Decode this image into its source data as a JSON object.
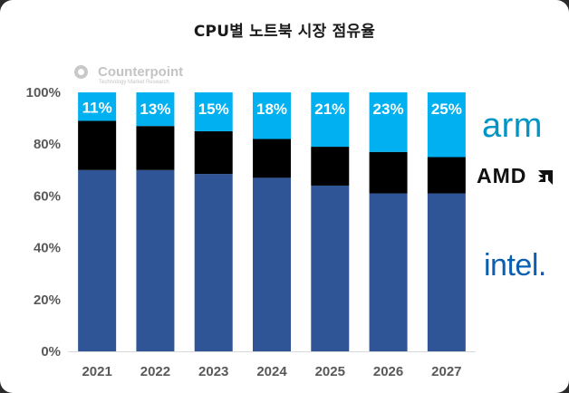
{
  "title": "CPU별 노트북 시장 점유율",
  "watermark": {
    "name": "Counterpoint",
    "tagline": "Technology Market Research"
  },
  "logos": {
    "arm": "arm",
    "amd": "AMD",
    "intel": "intel."
  },
  "colors": {
    "intel": "#2f5597",
    "amd": "#000000",
    "arm": "#00b0f0",
    "axis_text": "#595959",
    "bar_label": "#ffffff"
  },
  "chart_data": {
    "type": "bar",
    "stacked": true,
    "title": "CPU별 노트북 시장 점유율",
    "categories": [
      "2021",
      "2022",
      "2023",
      "2024",
      "2025",
      "2026",
      "2027"
    ],
    "series": [
      {
        "name": "intel.",
        "color_key": "intel",
        "values": [
          70,
          70,
          68.5,
          67,
          64,
          61,
          61
        ]
      },
      {
        "name": "AMD",
        "color_key": "amd",
        "values": [
          19,
          17,
          16.5,
          15,
          15,
          16,
          14
        ]
      },
      {
        "name": "arm",
        "color_key": "arm",
        "values": [
          11,
          13,
          15,
          18,
          21,
          23,
          25
        ]
      }
    ],
    "data_labels": [
      "11%",
      "13%",
      "15%",
      "18%",
      "21%",
      "23%",
      "25%"
    ],
    "y_ticks": [
      "0%",
      "20%",
      "40%",
      "60%",
      "80%",
      "100%"
    ],
    "y_tick_values": [
      0,
      20,
      40,
      60,
      80,
      100
    ],
    "ylim": [
      0,
      100
    ],
    "xlabel": "",
    "ylabel": "",
    "grid": false,
    "legend": "right (logos)"
  }
}
